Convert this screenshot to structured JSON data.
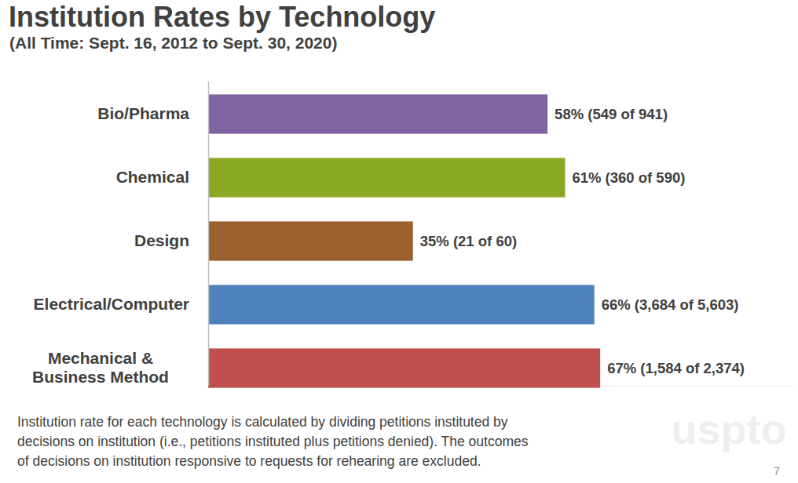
{
  "chart_data": {
    "type": "bar",
    "orientation": "horizontal",
    "title": "Institution Rates by Technology",
    "subtitle": "(All Time: Sept. 16, 2012 to Sept. 30, 2020)",
    "categories": [
      "Bio/Pharma",
      "Chemical",
      "Design",
      "Electrical/Computer",
      "Mechanical & Business Method"
    ],
    "values": [
      58,
      61,
      35,
      66,
      67
    ],
    "value_labels": [
      "58% (549 of 941)",
      "61% (360 of 590)",
      "35% (21 of 60)",
      "66% (3,684 of 5,603)",
      "67% (1,584 of 2,374)"
    ],
    "colors": [
      "#8064a2",
      "#8aa823",
      "#9a612e",
      "#4f81bd",
      "#c0504d"
    ],
    "xlim": [
      0,
      100
    ],
    "data_labels": true,
    "tick_labels": "y",
    "grid": false,
    "note": [
      "Institution rate for each technology is calculated by dividing petitions instituted by",
      "decisions on institution (i.e., petitions instituted plus petitions denied). The outcomes",
      "of decisions on institution responsive to requests for rehearing are excluded."
    ],
    "watermark": "uspto",
    "page_number": "7"
  }
}
